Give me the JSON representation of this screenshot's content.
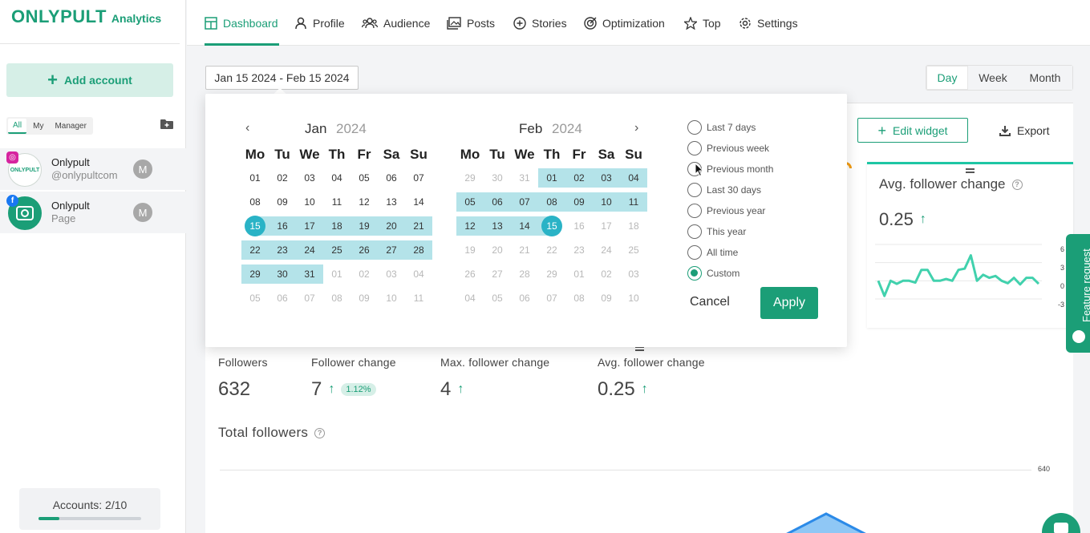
{
  "sidebar": {
    "brand": "ONLYPULT",
    "brand_sub": "Analytics",
    "add_account_label": "Add account",
    "filters": [
      "All",
      "My",
      "Manager"
    ],
    "accounts": [
      {
        "name": "Onlypult",
        "handle": "@onlypultcom",
        "network": "instagram",
        "avatar_text": "ONLYPULT",
        "badge": "M"
      },
      {
        "name": "Onlypult",
        "handle": "Page",
        "network": "facebook",
        "badge": "M"
      }
    ],
    "accounts_label": "Accounts: 2/10",
    "accounts_fraction": 0.2
  },
  "nav": {
    "items": [
      "Dashboard",
      "Profile",
      "Audience",
      "Posts",
      "Stories",
      "Optimization",
      "Top",
      "Settings"
    ],
    "active": "Dashboard"
  },
  "toolbar": {
    "date_range": "Jan 15 2024 - Feb 15 2024",
    "periods": [
      "Day",
      "Week",
      "Month"
    ],
    "active_period": "Day",
    "edit_widget_label": "Edit widget",
    "export_label": "Export"
  },
  "calendar": {
    "left": {
      "month": "Jan",
      "year": "2024"
    },
    "right": {
      "month": "Feb",
      "year": "2024"
    },
    "weekdays": [
      "Mo",
      "Tu",
      "We",
      "Th",
      "Fr",
      "Sa",
      "Su"
    ],
    "left_days": [
      [
        "01",
        "02",
        "03",
        "04",
        "05",
        "06",
        "07"
      ],
      [
        "08",
        "09",
        "10",
        "11",
        "12",
        "13",
        "14"
      ],
      [
        "15",
        "16",
        "17",
        "18",
        "19",
        "20",
        "21"
      ],
      [
        "22",
        "23",
        "24",
        "25",
        "26",
        "27",
        "28"
      ],
      [
        "29",
        "30",
        "31",
        "01",
        "02",
        "03",
        "04"
      ],
      [
        "05",
        "06",
        "07",
        "08",
        "09",
        "10",
        "11"
      ]
    ],
    "right_days": [
      [
        "29",
        "30",
        "31",
        "01",
        "02",
        "03",
        "04"
      ],
      [
        "05",
        "06",
        "07",
        "08",
        "09",
        "10",
        "11"
      ],
      [
        "12",
        "13",
        "14",
        "15",
        "16",
        "17",
        "18"
      ],
      [
        "19",
        "20",
        "21",
        "22",
        "23",
        "24",
        "25"
      ],
      [
        "26",
        "27",
        "28",
        "29",
        "01",
        "02",
        "03"
      ],
      [
        "04",
        "05",
        "06",
        "07",
        "08",
        "09",
        "10"
      ]
    ],
    "presets": [
      "Last 7 days",
      "Previous week",
      "Previous month",
      "Last 30 days",
      "Previous year",
      "This year",
      "All time",
      "Custom"
    ],
    "selected_preset": "Custom",
    "cancel_label": "Cancel",
    "apply_label": "Apply"
  },
  "avg_widget": {
    "title": "Avg. follower change",
    "value": "0.25",
    "y_ticks": [
      "6",
      "3",
      "0",
      "-3"
    ],
    "series": [
      0,
      -2.5,
      0,
      -0.5,
      0,
      0,
      -0.3,
      1.8,
      1.8,
      0,
      0,
      0.3,
      0,
      1.8,
      2,
      4.2,
      0,
      1,
      0.5,
      0.8,
      0,
      -0.4,
      0.5,
      -0.6,
      0.5,
      0.5,
      -0.5
    ]
  },
  "stats": [
    {
      "label": "Followers",
      "value": "632"
    },
    {
      "label": "Follower change",
      "value": "7",
      "badge": "1.12%"
    },
    {
      "label": "Max. follower change",
      "value": "4"
    },
    {
      "label": "Avg. follower change",
      "value": "0.25"
    }
  ],
  "total_followers": {
    "title": "Total followers",
    "y_tick": "640"
  },
  "feature_request_label": "Feature request",
  "colors": {
    "accent": "#1b9e77",
    "range": "#b4e3e9",
    "edge": "#2ab3c6",
    "spark": "#41d1ad"
  }
}
